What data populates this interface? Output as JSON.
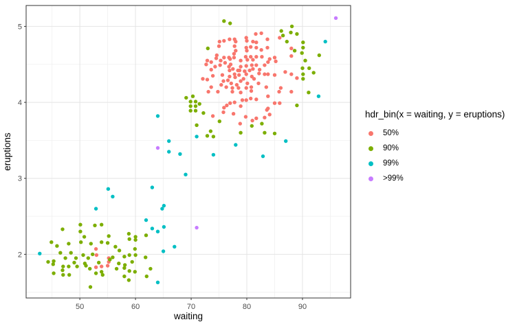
{
  "chart_data": {
    "type": "scatter",
    "title": "",
    "xlabel": "waiting",
    "ylabel": "eruptions",
    "xlim": [
      40.35,
      98.65
    ],
    "ylim": [
      1.425,
      5.275
    ],
    "x_ticks": [
      50,
      60,
      70,
      80,
      90
    ],
    "y_ticks": [
      2,
      3,
      4,
      5
    ],
    "x_minor": [
      45,
      55,
      65,
      75,
      85,
      95
    ],
    "y_minor": [
      1.5,
      2.5,
      3.5,
      4.5
    ],
    "grid": true,
    "panel_border_color": "#333333",
    "major_grid_color": "#e4e4e4",
    "minor_grid_color": "#f0f0f0",
    "legend": {
      "title": "hdr_bin(x = waiting, y = eruptions)",
      "position": "right",
      "entries": [
        {
          "label": "50%",
          "color": "#F8766D"
        },
        {
          "label": "90%",
          "color": "#7CAE00"
        },
        {
          "label": "99%",
          "color": "#00BFC4"
        },
        {
          "label": ">99%",
          "color": "#C77CFF"
        }
      ]
    },
    "series": [
      {
        "name": "50%",
        "color": "#F8766D",
        "points": [
          [
            81.6,
            4.9
          ],
          [
            82.6,
            4.91
          ],
          [
            75.1,
            4.8
          ],
          [
            75.9,
            4.81
          ],
          [
            76.9,
            4.83
          ],
          [
            77.8,
            4.83
          ],
          [
            79.9,
            4.85
          ],
          [
            83.7,
            4.83
          ],
          [
            81.7,
            4.79
          ],
          [
            77.8,
            4.74
          ],
          [
            79.9,
            4.72
          ],
          [
            80.7,
            4.73
          ],
          [
            81.7,
            4.72
          ],
          [
            83.7,
            4.72
          ],
          [
            72.9,
            4.55
          ],
          [
            73.6,
            4.53
          ],
          [
            75.9,
            4.59
          ],
          [
            76.8,
            4.59
          ],
          [
            77.7,
            4.59
          ],
          [
            78.9,
            4.55
          ],
          [
            79.8,
            4.6
          ],
          [
            80.7,
            4.6
          ],
          [
            81.7,
            4.6
          ],
          [
            82.7,
            4.6
          ],
          [
            74.3,
            4.47
          ],
          [
            75.2,
            4.49
          ],
          [
            76.8,
            4.47
          ],
          [
            78.9,
            4.47
          ],
          [
            79.9,
            4.48
          ],
          [
            80.9,
            4.49
          ],
          [
            81.7,
            4.49
          ],
          [
            83.2,
            4.49
          ],
          [
            72.1,
            4.31
          ],
          [
            72.9,
            4.3
          ],
          [
            73.9,
            4.35
          ],
          [
            75.8,
            4.28
          ],
          [
            76.6,
            4.29
          ],
          [
            77.8,
            4.37
          ],
          [
            78.9,
            4.28
          ],
          [
            79.9,
            4.37
          ],
          [
            80.9,
            4.34
          ],
          [
            82.2,
            4.38
          ],
          [
            83.2,
            4.37
          ],
          [
            77.4,
            4.19
          ],
          [
            78.5,
            4.19
          ],
          [
            85.9,
            4.85
          ],
          [
            88.0,
            4.71
          ],
          [
            88.0,
            4.61
          ],
          [
            84.1,
            4.57
          ],
          [
            85.0,
            4.59
          ],
          [
            85.2,
            4.54
          ],
          [
            83.8,
            4.53
          ],
          [
            83.8,
            4.37
          ],
          [
            85.0,
            4.36
          ],
          [
            86.9,
            4.4
          ],
          [
            88.0,
            4.37
          ],
          [
            89.0,
            4.32
          ],
          [
            86.1,
            4.19
          ],
          [
            73.1,
            4.14
          ],
          [
            74.8,
            4.14
          ],
          [
            77.4,
            4.14
          ],
          [
            78.9,
            4.13
          ],
          [
            80.8,
            4.15
          ],
          [
            81.7,
            4.04
          ],
          [
            79.9,
            4.03
          ],
          [
            80.7,
            4.05
          ],
          [
            76.4,
            3.96
          ],
          [
            75.9,
            3.93
          ],
          [
            77.0,
            3.99
          ],
          [
            77.8,
            4.0
          ],
          [
            78.9,
            3.95
          ],
          [
            79.2,
            4.03
          ],
          [
            73.9,
            3.82
          ],
          [
            75.8,
            3.87
          ],
          [
            77.6,
            3.85
          ],
          [
            78.8,
            3.72
          ],
          [
            79.8,
            3.81
          ],
          [
            81.0,
            3.76
          ],
          [
            81.7,
            3.79
          ],
          [
            83.6,
            3.9
          ],
          [
            83.2,
            3.8
          ],
          [
            85.8,
            4.14
          ],
          [
            88.0,
            4.14
          ],
          [
            83.8,
            4.08
          ],
          [
            85.0,
            3.99
          ],
          [
            85.9,
            3.99
          ],
          [
            83.8,
            3.92
          ],
          [
            84.1,
            3.84
          ],
          [
            52.9,
            2.07
          ],
          [
            53.0,
            1.99
          ],
          [
            52.9,
            1.83
          ],
          [
            53.9,
            1.84
          ],
          [
            55.0,
            1.85
          ],
          [
            55.2,
            1.95
          ],
          [
            55.2,
            1.9
          ],
          [
            75.0,
            4.74
          ],
          [
            78.0,
            4.8
          ],
          [
            80.0,
            4.81
          ],
          [
            81.1,
            4.8
          ],
          [
            78.0,
            4.68
          ],
          [
            77.7,
            4.64
          ],
          [
            80.0,
            4.68
          ],
          [
            82.6,
            4.69
          ],
          [
            74.5,
            4.58
          ],
          [
            77.0,
            4.57
          ],
          [
            80.1,
            4.56
          ],
          [
            81.1,
            4.56
          ],
          [
            72.7,
            4.5
          ],
          [
            73.6,
            4.43
          ],
          [
            73.6,
            4.2
          ],
          [
            83.5,
            4.2
          ],
          [
            76.9,
            4.42
          ],
          [
            78.7,
            4.42
          ],
          [
            76.9,
            4.34
          ],
          [
            74.6,
            4.62
          ],
          [
            75.3,
            4.55
          ],
          [
            76.1,
            4.52
          ],
          [
            77.1,
            4.5
          ],
          [
            77.5,
            4.44
          ],
          [
            78.4,
            4.42
          ],
          [
            79.6,
            4.41
          ],
          [
            80.5,
            4.42
          ],
          [
            81.1,
            4.44
          ],
          [
            82.3,
            4.43
          ],
          [
            75.6,
            4.36
          ],
          [
            77.9,
            4.33
          ],
          [
            78.6,
            4.36
          ],
          [
            79.4,
            4.31
          ],
          [
            80.1,
            4.25
          ],
          [
            81.3,
            4.31
          ],
          [
            82.1,
            4.25
          ],
          [
            75.4,
            4.23
          ],
          [
            76.3,
            4.2
          ],
          [
            77.2,
            4.25
          ],
          [
            78.2,
            4.23
          ],
          [
            79.9,
            4.19
          ],
          [
            80.8,
            4.2
          ]
        ]
      },
      {
        "name": "90%",
        "color": "#7CAE00",
        "points": [
          [
            75.9,
            5.07
          ],
          [
            77.0,
            5.04
          ],
          [
            73.0,
            4.71
          ],
          [
            88.1,
            5.0
          ],
          [
            86.2,
            4.94
          ],
          [
            87.9,
            4.92
          ],
          [
            89.0,
            4.9
          ],
          [
            90.1,
            4.79
          ],
          [
            90.1,
            4.72
          ],
          [
            89.9,
            4.65
          ],
          [
            93.0,
            4.62
          ],
          [
            90.0,
            4.45
          ],
          [
            90.1,
            4.37
          ],
          [
            90.1,
            4.31
          ],
          [
            92.0,
            4.39
          ],
          [
            69.1,
            4.06
          ],
          [
            69.9,
            4.01
          ],
          [
            70.8,
            4.01
          ],
          [
            69.9,
            3.95
          ],
          [
            70.8,
            3.95
          ],
          [
            69.9,
            3.89
          ],
          [
            70.8,
            3.89
          ],
          [
            71.0,
            3.7
          ],
          [
            72.9,
            3.56
          ],
          [
            75.1,
            3.75
          ],
          [
            78.9,
            3.6
          ],
          [
            80.9,
            3.69
          ],
          [
            82.7,
            3.72
          ],
          [
            83.2,
            3.6
          ],
          [
            91.1,
            4.13
          ],
          [
            89.0,
            3.96
          ],
          [
            85.0,
            3.59
          ],
          [
            50.1,
            2.39
          ],
          [
            52.7,
            2.38
          ],
          [
            53.9,
            2.39
          ],
          [
            46.9,
            2.33
          ],
          [
            50.1,
            2.3
          ],
          [
            55.2,
            2.24
          ],
          [
            50.8,
            2.23
          ],
          [
            44.9,
            2.16
          ],
          [
            45.9,
            2.11
          ],
          [
            48.0,
            2.14
          ],
          [
            50.2,
            2.16
          ],
          [
            52.0,
            2.14
          ],
          [
            53.9,
            2.16
          ],
          [
            55.0,
            2.15
          ],
          [
            45.3,
            1.91
          ],
          [
            45.2,
            1.87
          ],
          [
            44.3,
            1.9
          ],
          [
            47.0,
            1.84
          ],
          [
            48.0,
            1.84
          ],
          [
            49.5,
            1.84
          ],
          [
            51.1,
            1.85
          ],
          [
            53.9,
            1.77
          ],
          [
            54.1,
            1.73
          ],
          [
            52.9,
            1.75
          ],
          [
            47.0,
            1.73
          ],
          [
            48.1,
            1.73
          ],
          [
            45.3,
            1.75
          ],
          [
            51.9,
            1.57
          ],
          [
            58.8,
            2.27
          ],
          [
            60.0,
            2.23
          ],
          [
            60.0,
            2.19
          ],
          [
            58.9,
            2.2
          ],
          [
            61.9,
            2.25
          ],
          [
            59.9,
            2.07
          ],
          [
            57.1,
            2.05
          ],
          [
            60.0,
            1.99
          ],
          [
            58.9,
            1.99
          ],
          [
            58.0,
            1.97
          ],
          [
            55.9,
            1.96
          ],
          [
            55.4,
            1.93
          ],
          [
            61.8,
            1.96
          ],
          [
            58.1,
            1.86
          ],
          [
            58.0,
            1.82
          ],
          [
            56.6,
            1.81
          ],
          [
            58.9,
            1.78
          ],
          [
            59.9,
            1.77
          ],
          [
            62.7,
            1.81
          ],
          [
            58.0,
            1.71
          ],
          [
            62.0,
            1.71
          ],
          [
            58.8,
            1.66
          ],
          [
            46.5,
            2.02
          ],
          [
            47.4,
            1.95
          ],
          [
            48.4,
            2.02
          ],
          [
            49.3,
            1.95
          ],
          [
            50.6,
            1.99
          ],
          [
            51.5,
            1.95
          ],
          [
            52.3,
            2.0
          ],
          [
            49.0,
            1.89
          ],
          [
            50.9,
            1.88
          ],
          [
            51.8,
            1.81
          ],
          [
            46.9,
            1.79
          ],
          [
            53.4,
            1.89
          ],
          [
            56.4,
            2.1
          ],
          [
            57.0,
            1.88
          ],
          [
            59.4,
            1.9
          ],
          [
            70.3,
            4.08
          ],
          [
            71.5,
            3.98
          ],
          [
            72.2,
            3.86
          ],
          [
            73.5,
            3.62
          ],
          [
            86.5,
            4.88
          ],
          [
            87.2,
            4.8
          ],
          [
            88.6,
            4.68
          ],
          [
            90.5,
            4.55
          ],
          [
            91.2,
            4.45
          ],
          [
            74.0,
            3.55
          ]
        ]
      },
      {
        "name": "99%",
        "color": "#00BFC4",
        "points": [
          [
            94.1,
            4.8
          ],
          [
            92.9,
            4.08
          ],
          [
            87.0,
            3.49
          ],
          [
            64.0,
            3.82
          ],
          [
            71.0,
            3.55
          ],
          [
            78.0,
            3.44
          ],
          [
            74.0,
            3.31
          ],
          [
            82.9,
            3.29
          ],
          [
            66.0,
            3.49
          ],
          [
            66.0,
            3.35
          ],
          [
            68.0,
            3.32
          ],
          [
            69.0,
            3.05
          ],
          [
            63.0,
            2.88
          ],
          [
            55.9,
            2.76
          ],
          [
            65.1,
            2.64
          ],
          [
            55.1,
            2.86
          ],
          [
            52.9,
            2.6
          ],
          [
            42.8,
            2.01
          ],
          [
            64.8,
            2.6
          ],
          [
            61.9,
            2.45
          ],
          [
            63.0,
            2.34
          ],
          [
            64.0,
            2.3
          ],
          [
            65.1,
            2.36
          ],
          [
            67.0,
            2.1
          ],
          [
            65.0,
            2.04
          ],
          [
            64.0,
            1.63
          ]
        ]
      },
      {
        "name": ">99%",
        "color": "#C77CFF",
        "points": [
          [
            96.0,
            5.11
          ],
          [
            64.0,
            3.4
          ],
          [
            71.0,
            2.35
          ]
        ]
      }
    ]
  }
}
